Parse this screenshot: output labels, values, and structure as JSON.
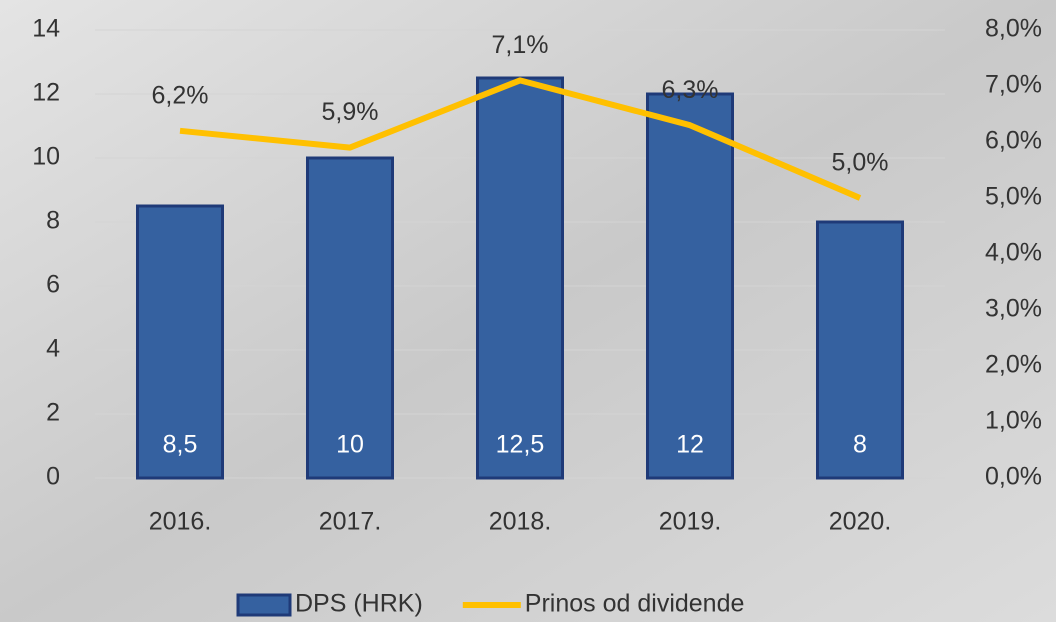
{
  "chart_data": {
    "type": "bar",
    "categories": [
      "2016.",
      "2017.",
      "2018.",
      "2019.",
      "2020."
    ],
    "series": [
      {
        "name": "DPS (HRK)",
        "type": "bar",
        "color": "#3561a0",
        "values": [
          8.5,
          10,
          12.5,
          12,
          8
        ],
        "value_labels": [
          "8,5",
          "10",
          "12,5",
          "12",
          "8"
        ]
      },
      {
        "name": "Prinos od dividende",
        "type": "line",
        "axis": "y2",
        "color": "#ffc000",
        "values": [
          6.2,
          5.9,
          7.1,
          6.3,
          5.0
        ],
        "value_labels": [
          "6,2%",
          "5,9%",
          "7,1%",
          "6,3%",
          "5,0%"
        ]
      }
    ],
    "ylim": [
      0,
      14
    ],
    "yticks": [
      0,
      2,
      4,
      6,
      8,
      10,
      12,
      14
    ],
    "y2lim": [
      0,
      8
    ],
    "y2ticks": [
      {
        "value": 0,
        "label": "0,0%"
      },
      {
        "value": 1,
        "label": "1,0%"
      },
      {
        "value": 2,
        "label": "2,0%"
      },
      {
        "value": 3,
        "label": "3,0%"
      },
      {
        "value": 4,
        "label": "4,0%"
      },
      {
        "value": 5,
        "label": "5,0%"
      },
      {
        "value": 6,
        "label": "6,0%"
      },
      {
        "value": 7,
        "label": "7,0%"
      },
      {
        "value": 8,
        "label": "8,0%"
      }
    ],
    "grid": true,
    "legend": "bottom"
  }
}
